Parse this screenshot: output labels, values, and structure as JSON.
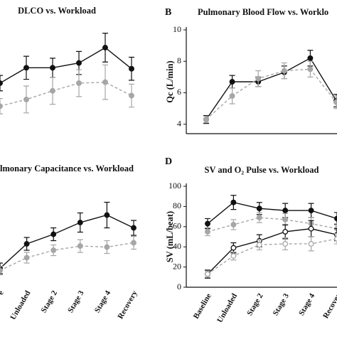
{
  "chart_data": [
    {
      "type": "line",
      "title": "DLCO vs. Workload",
      "categories": [
        null,
        null,
        null,
        null,
        null,
        null
      ],
      "ylim": [
        0,
        100
      ],
      "yticks": [],
      "series": [
        {
          "color": "#111111",
          "dashed": false,
          "marker": "filled",
          "values": [
            43,
            59,
            59,
            64,
            80,
            58
          ],
          "errors": [
            8,
            12,
            10,
            12,
            15,
            12
          ]
        },
        {
          "color": "#a6a6a6",
          "dashed": true,
          "marker": "filled",
          "values": [
            19,
            26,
            35,
            43,
            44,
            30
          ],
          "errors": [
            8,
            14,
            14,
            14,
            18,
            12
          ]
        }
      ]
    },
    {
      "type": "line",
      "panel": "B",
      "title": "Pulmonary Blood Flow vs. Worklo",
      "ylabel": "Qc (L/min)",
      "categories": [
        null,
        null,
        null,
        null,
        null,
        null
      ],
      "ylim": [
        3.4,
        10
      ],
      "yticks": [
        4,
        6,
        8,
        10
      ],
      "series": [
        {
          "color": "#111111",
          "dashed": false,
          "marker": "filled",
          "values": [
            4.3,
            6.7,
            6.7,
            7.3,
            8.2,
            5.5
          ],
          "errors": [
            0.25,
            0.4,
            0.3,
            0.4,
            0.5,
            0.4
          ]
        },
        {
          "color": "#a6a6a6",
          "dashed": true,
          "marker": "filled",
          "values": [
            4.3,
            5.8,
            6.9,
            7.4,
            7.5,
            5.4
          ],
          "errors": [
            0.2,
            0.5,
            0.5,
            0.5,
            0.5,
            0.4
          ]
        }
      ]
    },
    {
      "type": "line",
      "title": "lmonary Capacitance vs. Workload",
      "categories": [
        "e",
        "Unloaded",
        "Stage 2",
        "Stage 3",
        "Stage 4",
        "Recovery"
      ],
      "ylim": [
        0,
        100
      ],
      "yticks": [],
      "series": [
        {
          "color": "#111111",
          "dashed": false,
          "marker": "filled",
          "values": [
            15,
            38,
            47,
            58,
            65,
            53
          ],
          "errors": [
            5,
            6,
            6,
            9,
            12,
            7
          ]
        },
        {
          "color": "#a6a6a6",
          "dashed": true,
          "marker": "filled",
          "values": [
            13,
            25,
            32,
            36,
            35,
            39
          ],
          "errors": [
            4,
            5,
            5,
            6,
            6,
            6
          ]
        }
      ]
    },
    {
      "type": "line",
      "panel": "D",
      "title": "SV and O₂ Pulse vs. Workload",
      "ylabel": "SV (mL/beat)",
      "categories": [
        "Baseline",
        "Unloaded",
        "Stage 2",
        "Stage 3",
        "Stage 4",
        "Recover"
      ],
      "ylim": [
        0,
        100
      ],
      "yticks": [
        0,
        20,
        40,
        60,
        80,
        100
      ],
      "series": [
        {
          "color": "#111111",
          "dashed": false,
          "marker": "filled",
          "values": [
            63,
            84,
            78,
            76,
            76,
            68
          ],
          "errors": [
            5,
            7,
            6,
            7,
            7,
            6
          ]
        },
        {
          "color": "#a6a6a6",
          "dashed": true,
          "marker": "filled",
          "values": [
            55,
            62,
            69,
            67,
            63,
            58
          ],
          "errors": [
            4,
            5,
            5,
            6,
            6,
            5
          ]
        },
        {
          "color": "#111111",
          "dashed": false,
          "marker": "open",
          "values": [
            13,
            39,
            46,
            55,
            58,
            52
          ],
          "errors": [
            4,
            5,
            6,
            7,
            8,
            6
          ]
        },
        {
          "color": "#a6a6a6",
          "dashed": true,
          "marker": "open",
          "values": [
            13,
            31,
            42,
            43,
            43,
            48
          ],
          "errors": [
            3,
            4,
            5,
            6,
            7,
            5
          ]
        }
      ]
    }
  ]
}
